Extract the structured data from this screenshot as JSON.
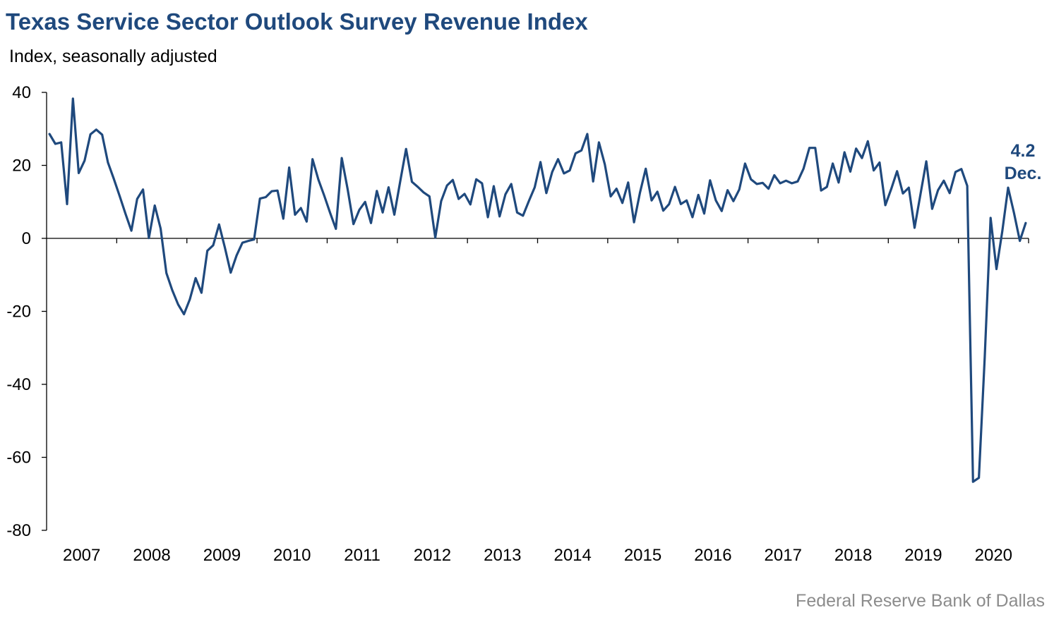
{
  "title": "Texas Service Sector Outlook Survey Revenue Index",
  "subtitle": "Index, seasonally adjusted",
  "source": "Federal Reserve Bank of Dallas",
  "chart_data": {
    "type": "line",
    "title": "Texas Service Sector Outlook Survey Revenue Index",
    "subtitle": "Index, seasonally adjusted",
    "ylabel": "",
    "xlabel": "",
    "ylim": [
      -80,
      40
    ],
    "yticks": [
      "40",
      "20",
      "0",
      "-20",
      "-40",
      "-60",
      "-80"
    ],
    "ytick_values": [
      40,
      20,
      0,
      -20,
      -40,
      -60,
      -80
    ],
    "years": [
      "2007",
      "2008",
      "2009",
      "2010",
      "2011",
      "2012",
      "2013",
      "2014",
      "2015",
      "2016",
      "2017",
      "2018",
      "2019",
      "2020"
    ],
    "start": "2007-01",
    "end": "2020-12",
    "frequency": "monthly",
    "grid": false,
    "color": "#1f497d",
    "annotation": {
      "value": "4.2",
      "label": "Dec."
    },
    "series": [
      {
        "values": [
          28.6,
          25.9,
          26.3,
          9.4,
          38.3,
          17.9,
          21.3,
          28.5,
          29.8,
          28.4,
          20.8,
          16.3,
          11.6,
          6.7,
          2.1,
          10.8,
          13.4,
          0.1,
          9.0,
          2.7,
          -9.5,
          -14.2,
          -18.1,
          -20.8,
          -16.7,
          -10.9,
          -14.9,
          -3.4,
          -1.9,
          3.8,
          -2.5,
          -9.4,
          -4.7,
          -1.2,
          -0.7,
          -0.3,
          10.9,
          11.3,
          12.9,
          13.1,
          5.4,
          19.4,
          6.5,
          8.3,
          4.6,
          21.7,
          16.1,
          11.7,
          7.0,
          2.6,
          22.0,
          13.5,
          3.9,
          7.8,
          10.0,
          4.2,
          13.0,
          7.1,
          14.0,
          6.5,
          15.6,
          24.5,
          15.5,
          14.1,
          12.6,
          11.5,
          0.2,
          10.2,
          14.5,
          16.0,
          10.8,
          12.2,
          9.3,
          16.2,
          15.1,
          5.8,
          14.3,
          6.0,
          12.1,
          14.9,
          7.1,
          6.2,
          10.2,
          14.0,
          20.9,
          12.4,
          18.2,
          21.7,
          17.8,
          18.6,
          23.3,
          24.1,
          28.6,
          15.6,
          26.3,
          20.3,
          11.5,
          13.6,
          9.7,
          15.3,
          4.4,
          12.4,
          19.1,
          10.4,
          12.8,
          7.6,
          9.4,
          14.1,
          9.4,
          10.4,
          5.8,
          11.9,
          6.8,
          15.9,
          10.4,
          7.5,
          13.2,
          10.2,
          13.4,
          20.5,
          16.2,
          14.9,
          15.2,
          13.6,
          17.3,
          15.1,
          15.8,
          15.1,
          15.6,
          19.1,
          24.8,
          24.8,
          13.1,
          14.1,
          20.5,
          15.3,
          23.6,
          18.3,
          24.6,
          22.0,
          26.6,
          18.6,
          20.8,
          9.1,
          13.5,
          18.4,
          12.3,
          13.9,
          2.9,
          12.0,
          21.1,
          8.1,
          13.2,
          15.8,
          12.4,
          18.2,
          19.0,
          14.4,
          -66.7,
          -65.6,
          -32.5,
          5.6,
          -8.4,
          1.9,
          13.9,
          7.0,
          -0.7,
          4.2
        ]
      }
    ]
  }
}
